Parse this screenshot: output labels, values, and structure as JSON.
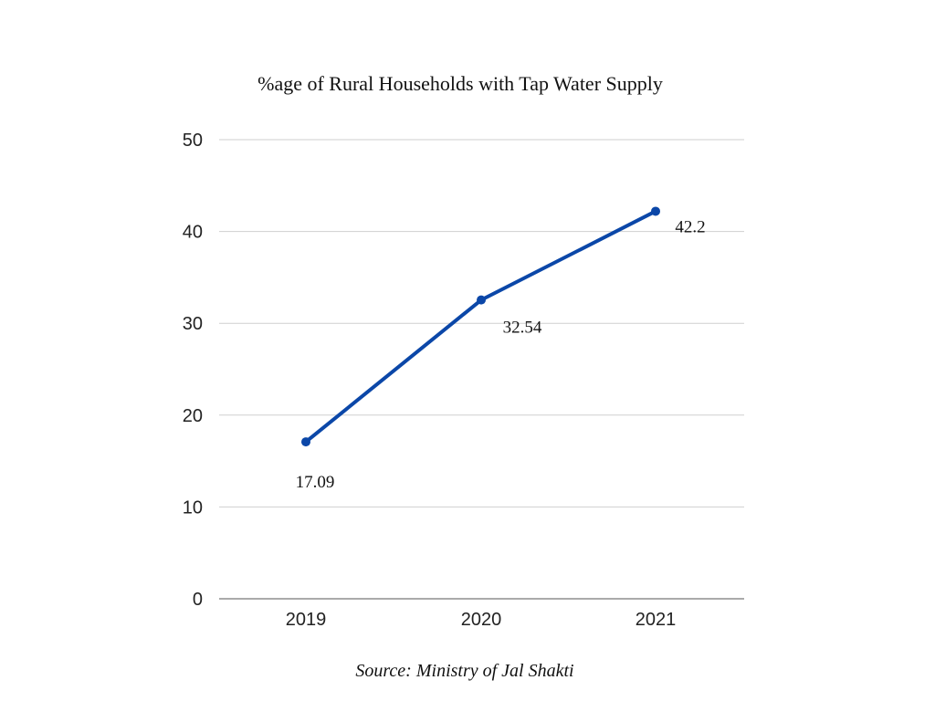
{
  "chart_data": {
    "type": "line",
    "title": "%age of Rural Households with Tap Water Supply",
    "categories": [
      "2019",
      "2020",
      "2021"
    ],
    "series": [
      {
        "name": "%age of Rural Households with Tap Water Supply",
        "values": [
          17.09,
          32.54,
          42.2
        ],
        "labels": [
          "17.09",
          "32.54",
          "42.2"
        ],
        "color": "#0b47a8"
      }
    ],
    "xlabel": "",
    "ylabel": "",
    "ylim": [
      0,
      50
    ],
    "yticks": [
      0,
      10,
      20,
      30,
      40,
      50
    ],
    "grid": true,
    "legend": "none"
  },
  "source": "Source: Ministry of Jal Shakti"
}
